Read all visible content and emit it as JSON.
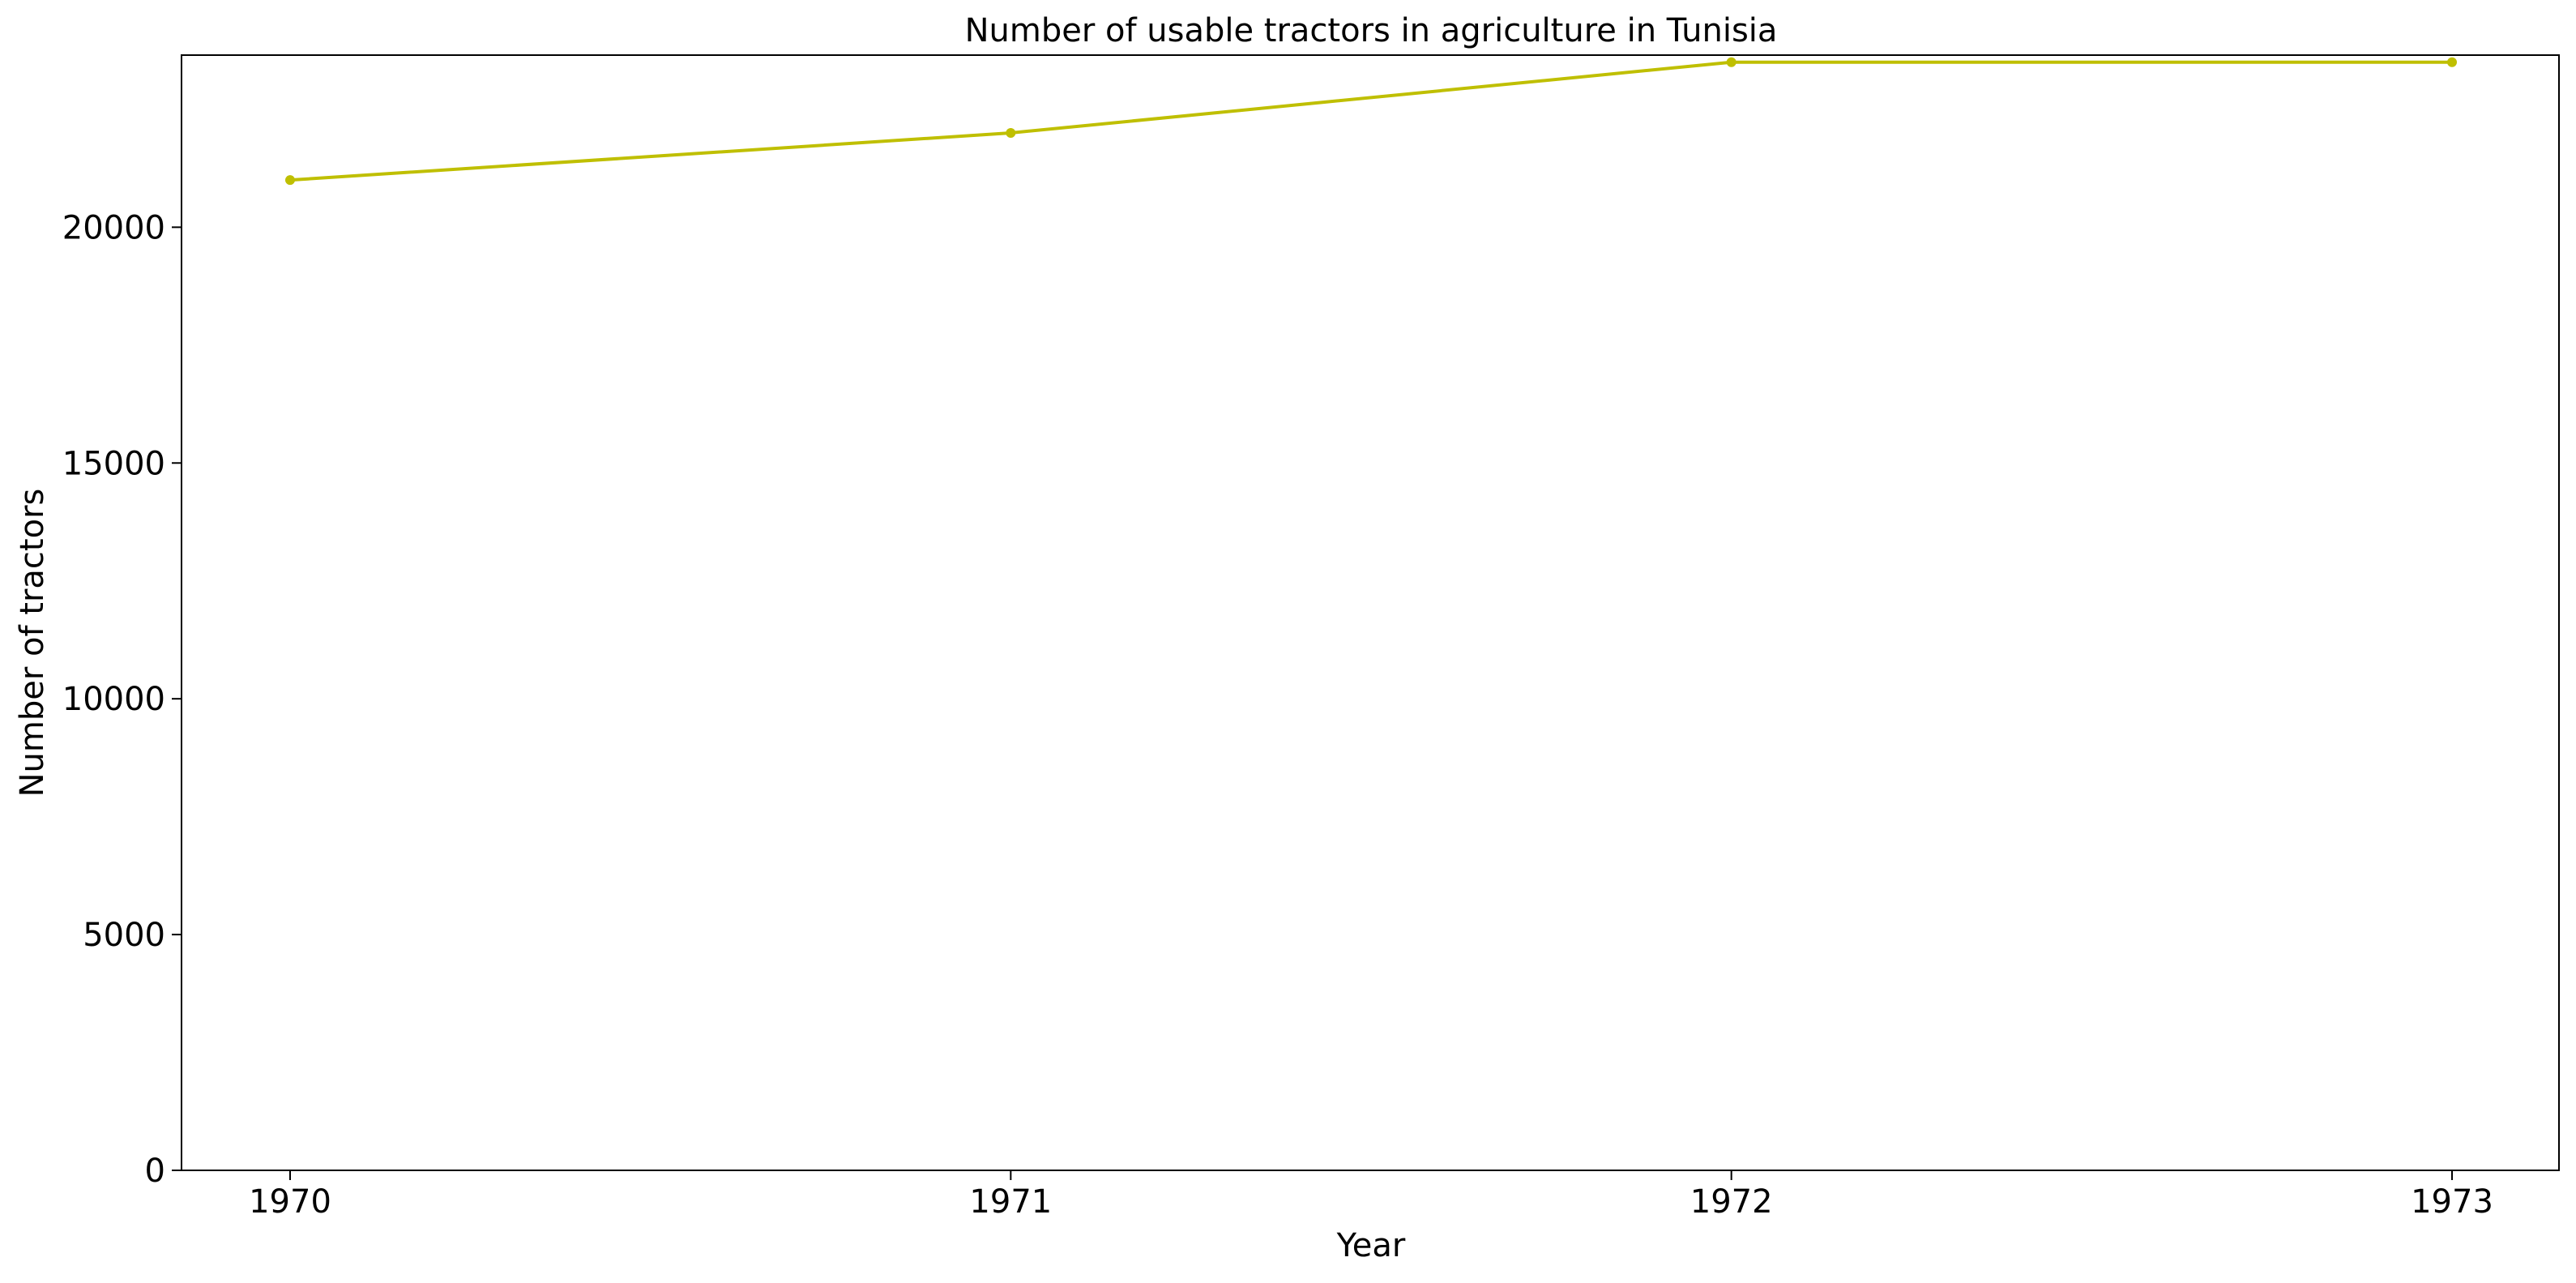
{
  "chart_data": {
    "type": "line",
    "title": "Number of usable tractors in agriculture in Tunisia",
    "xlabel": "Year",
    "ylabel": "Number of tractors",
    "categories": [
      "1970",
      "1971",
      "1972",
      "1973"
    ],
    "series": [
      {
        "name": "Number of usable tractors",
        "values": [
          21000,
          22000,
          23500,
          23500
        ],
        "color": "#bfbf00"
      }
    ],
    "ylim": [
      0,
      23650
    ],
    "yticks": [
      0,
      5000,
      10000,
      15000,
      20000
    ],
    "ytick_labels": [
      "0",
      "5000",
      "10000",
      "15000",
      "20000"
    ],
    "grid": false,
    "legend": "none"
  }
}
